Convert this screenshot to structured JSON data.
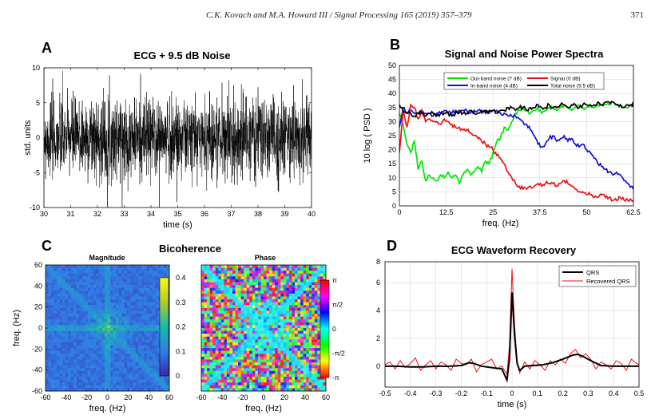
{
  "header": {
    "citation": "C.K. Kovach and M.A. Howard III / Signal Processing 165 (2019) 357–379",
    "page_number": "371"
  },
  "panels": {
    "A": {
      "letter": "A",
      "title": "ECG +  9.5 dB Noise"
    },
    "B": {
      "letter": "B",
      "title": "Signal and Noise Power Spectra"
    },
    "C": {
      "letter": "C",
      "title": "Bicoherence",
      "sub_magnitude": "Magnitude",
      "sub_phase": "Phase"
    },
    "D": {
      "letter": "D",
      "title": "ECG Waveform Recovery"
    }
  },
  "colors": {
    "green": "#00e600",
    "red": "#ee1111",
    "blue": "#1010dd",
    "black": "#000000"
  },
  "chart_data": [
    {
      "id": "A",
      "type": "line",
      "title": "ECG +  9.5 dB Noise",
      "xlabel": "time (s)",
      "ylabel": "std. units",
      "xlim": [
        30,
        40
      ],
      "ylim": [
        -10,
        10
      ],
      "xticks": [
        "30",
        "31",
        "32",
        "33",
        "34",
        "35",
        "36",
        "37",
        "38",
        "39",
        "40"
      ],
      "yticks": [
        "-10",
        "-5",
        "0",
        "5",
        "10"
      ],
      "series": [
        {
          "color": "#000000",
          "shape": "dense noisy signal",
          "approx_std": 2.9
        }
      ]
    },
    {
      "id": "B",
      "type": "line",
      "title": "Signal and Noise Power Spectra",
      "xlabel": "freq. (Hz)",
      "ylabel": "10 log ( PSD )",
      "xlim": [
        0,
        62.5
      ],
      "ylim": [
        0,
        50
      ],
      "grid": true,
      "legend": "top-center",
      "xticks": [
        "0",
        "12.5",
        "25",
        "37.5",
        "50",
        "62.5"
      ],
      "yticks": [
        "0",
        "5",
        "10",
        "15",
        "20",
        "25",
        "30",
        "35",
        "40",
        "45",
        "50"
      ],
      "series": [
        {
          "name": "Out-band noise (7 dB)",
          "color": "#00e600",
          "x": [
            0,
            1,
            2,
            3,
            4,
            5,
            6,
            7,
            8,
            9,
            10,
            11,
            12,
            13,
            14,
            15,
            16,
            17,
            18,
            19,
            20,
            21,
            22,
            23,
            24,
            25,
            26,
            27,
            28,
            29,
            30,
            31,
            32,
            33,
            34,
            35,
            36,
            37,
            38,
            39,
            40,
            41,
            42,
            43,
            44,
            45,
            46,
            47,
            48,
            49,
            50,
            51,
            52,
            53,
            54,
            55,
            56,
            57,
            58,
            59,
            60,
            61,
            62,
            62.5
          ],
          "y": [
            33,
            29,
            22,
            19,
            23,
            13,
            16,
            9,
            11,
            10,
            9,
            11,
            10,
            12,
            10,
            11,
            8,
            11,
            13,
            11,
            12,
            14,
            12,
            16,
            15,
            19,
            23,
            24,
            28,
            27,
            30,
            33,
            34,
            35,
            34,
            33,
            34,
            35,
            33,
            34,
            35,
            35,
            34,
            35,
            36,
            35,
            34,
            35,
            36,
            35,
            35,
            36,
            35,
            36,
            36,
            36,
            36,
            37,
            36,
            36,
            35,
            35,
            36,
            36
          ]
        },
        {
          "name": "In-band noise (4 dB)",
          "color": "#1010dd",
          "x": [
            0,
            1,
            2,
            3,
            4,
            5,
            6,
            7,
            8,
            9,
            10,
            11,
            12,
            13,
            14,
            15,
            16,
            17,
            18,
            19,
            20,
            21,
            22,
            23,
            24,
            25,
            26,
            27,
            28,
            29,
            30,
            31,
            32,
            33,
            34,
            35,
            36,
            37,
            38,
            39,
            40,
            41,
            42,
            43,
            44,
            45,
            46,
            47,
            48,
            49,
            50,
            51,
            52,
            53,
            54,
            55,
            56,
            57,
            58,
            59,
            60,
            61,
            62,
            62.5
          ],
          "y": [
            28,
            35,
            33,
            34,
            33,
            33,
            34,
            33,
            33,
            32,
            33,
            33,
            34,
            33,
            33,
            34,
            33,
            34,
            34,
            33,
            34,
            34,
            33,
            34,
            33,
            34,
            34,
            33,
            33,
            32,
            32,
            32,
            31,
            30,
            29,
            27,
            25,
            22,
            21,
            22,
            24,
            25,
            23,
            24,
            25,
            23,
            24,
            22,
            21,
            22,
            20,
            19,
            17,
            15,
            14,
            13,
            12,
            11,
            12,
            11,
            9,
            8,
            7,
            7
          ]
        },
        {
          "name": "Signal (0 dB)",
          "color": "#ee1111",
          "x": [
            0,
            1,
            2,
            3,
            4,
            5,
            6,
            7,
            8,
            9,
            10,
            11,
            12,
            13,
            14,
            15,
            16,
            17,
            18,
            19,
            20,
            21,
            22,
            23,
            24,
            25,
            26,
            27,
            28,
            29,
            30,
            31,
            32,
            33,
            34,
            35,
            36,
            37,
            38,
            39,
            40,
            41,
            42,
            43,
            44,
            45,
            46,
            47,
            48,
            49,
            50,
            51,
            52,
            53,
            54,
            55,
            56,
            57,
            58,
            59,
            60,
            61,
            62,
            62.5
          ],
          "y": [
            19,
            34,
            28,
            36,
            35,
            31,
            34,
            30,
            31,
            30,
            30,
            29,
            31,
            30,
            29,
            28,
            28,
            27,
            27,
            26,
            25,
            24,
            23,
            22,
            21,
            20,
            18,
            17,
            15,
            12,
            10,
            8,
            7,
            6,
            6,
            7,
            7,
            8,
            7,
            8,
            8,
            8,
            7,
            8,
            9,
            8,
            7,
            6,
            5,
            5,
            4,
            4,
            3,
            3,
            4,
            3,
            3,
            2,
            2,
            3,
            2,
            2,
            2,
            2
          ]
        },
        {
          "name": "Total noise (9.5 dB)",
          "color": "#000000",
          "x": [
            0,
            1,
            2,
            3,
            4,
            5,
            6,
            7,
            8,
            9,
            10,
            11,
            12,
            13,
            14,
            15,
            16,
            17,
            18,
            19,
            20,
            21,
            22,
            23,
            24,
            25,
            26,
            27,
            28,
            29,
            30,
            31,
            32,
            33,
            34,
            35,
            36,
            37,
            38,
            39,
            40,
            41,
            42,
            43,
            44,
            45,
            46,
            47,
            48,
            49,
            50,
            51,
            52,
            53,
            54,
            55,
            56,
            57,
            58,
            59,
            60,
            61,
            62,
            62.5
          ],
          "y": [
            36,
            34,
            33,
            33,
            32,
            33,
            33,
            32,
            33,
            33,
            32,
            33,
            33,
            33,
            32,
            33,
            34,
            33,
            33,
            34,
            33,
            33,
            34,
            33,
            34,
            34,
            33,
            34,
            34,
            35,
            35,
            34,
            35,
            35,
            34,
            35,
            35,
            36,
            35,
            35,
            36,
            35,
            35,
            36,
            36,
            35,
            36,
            36,
            35,
            36,
            36,
            36,
            36,
            37,
            36,
            37,
            37,
            37,
            36,
            36,
            35,
            36,
            36,
            36
          ]
        }
      ]
    },
    {
      "id": "C-magnitude",
      "type": "heatmap",
      "title": "Magnitude",
      "xlabel": "freq. (Hz)",
      "ylabel": "freq. (Hz)",
      "xlim": [
        -60,
        60
      ],
      "ylim": [
        -60,
        60
      ],
      "xticks": [
        "-60",
        "-40",
        "-20",
        "0",
        "20",
        "40",
        "60"
      ],
      "yticks": [
        "60",
        "40",
        "20",
        "0",
        "-20",
        "-40",
        "-60"
      ],
      "colorbar_ticks": [
        "0",
        "0.1",
        "0.2",
        "0.3",
        "0.4"
      ],
      "colorbar_range": [
        0,
        0.4
      ],
      "colormap": "parula"
    },
    {
      "id": "C-phase",
      "type": "heatmap",
      "title": "Phase",
      "xlabel": "freq. (Hz)",
      "xlim": [
        -60,
        60
      ],
      "ylim": [
        -60,
        60
      ],
      "xticks": [
        "-60",
        "-40",
        "-20",
        "0",
        "20",
        "40",
        "60"
      ],
      "colorbar_ticks": [
        "π",
        "π/2",
        "0",
        "-π/2",
        "-π"
      ],
      "colormap": "hsv"
    },
    {
      "id": "D",
      "type": "line",
      "title": "ECG Waveform Recovery",
      "xlabel": "time (s)",
      "xlim": [
        -0.5,
        0.5
      ],
      "ylim": [
        -1.5,
        7.5
      ],
      "legend": "top-right",
      "xticks": [
        "-0.5",
        "-0.4",
        "-0.3",
        "-0.2",
        "-0.1",
        "0",
        "0.1",
        "0.2",
        "0.3",
        "0.4",
        "0.5"
      ],
      "yticks": [
        "8",
        "6",
        "4",
        "2",
        "0"
      ],
      "series": [
        {
          "name": "QRS",
          "color": "#000000",
          "x": [
            -0.5,
            -0.45,
            -0.4,
            -0.35,
            -0.3,
            -0.25,
            -0.2,
            -0.17,
            -0.15,
            -0.12,
            -0.08,
            -0.04,
            -0.02,
            -0.01,
            0,
            0.01,
            0.02,
            0.03,
            0.05,
            0.08,
            0.12,
            0.16,
            0.2,
            0.24,
            0.26,
            0.28,
            0.31,
            0.35,
            0.4,
            0.45,
            0.5
          ],
          "y": [
            0,
            0,
            -0.05,
            -0.05,
            0,
            0,
            0.05,
            0.25,
            0.2,
            0,
            -0.1,
            -0.2,
            -1,
            0.5,
            5.3,
            2.2,
            0.2,
            -0.3,
            0,
            0.05,
            0.1,
            0.25,
            0.5,
            0.8,
            0.85,
            0.7,
            0.4,
            0.05,
            0,
            0,
            0
          ]
        },
        {
          "name": "Recovered QRS",
          "color": "#ee1111",
          "x": [
            -0.5,
            -0.48,
            -0.46,
            -0.44,
            -0.42,
            -0.4,
            -0.38,
            -0.36,
            -0.34,
            -0.32,
            -0.3,
            -0.28,
            -0.26,
            -0.24,
            -0.22,
            -0.2,
            -0.18,
            -0.16,
            -0.14,
            -0.12,
            -0.1,
            -0.08,
            -0.06,
            -0.04,
            -0.02,
            -0.01,
            0,
            0.01,
            0.02,
            0.03,
            0.05,
            0.07,
            0.09,
            0.11,
            0.13,
            0.15,
            0.17,
            0.19,
            0.21,
            0.23,
            0.25,
            0.27,
            0.29,
            0.31,
            0.33,
            0.35,
            0.37,
            0.39,
            0.41,
            0.43,
            0.45,
            0.47,
            0.49,
            0.5
          ],
          "y": [
            0.1,
            0.3,
            -0.2,
            0.4,
            -0.1,
            0.2,
            0.6,
            -0.3,
            0.1,
            0.4,
            -0.2,
            0.3,
            0.1,
            -0.3,
            0.5,
            0.2,
            0.1,
            0.5,
            -0.4,
            0.1,
            0.3,
            0.5,
            -0.2,
            0,
            -0.6,
            1.5,
            7,
            3,
            0.4,
            -0.5,
            0.3,
            -0.2,
            0.4,
            0.1,
            -0.3,
            0.4,
            0.1,
            0.5,
            0.2,
            0.9,
            1.2,
            0.6,
            0.9,
            0.5,
            -0.2,
            0.3,
            0.1,
            -0.2,
            0.4,
            0.2,
            -0.3,
            0.5,
            0.2,
            0.1
          ]
        }
      ]
    }
  ]
}
